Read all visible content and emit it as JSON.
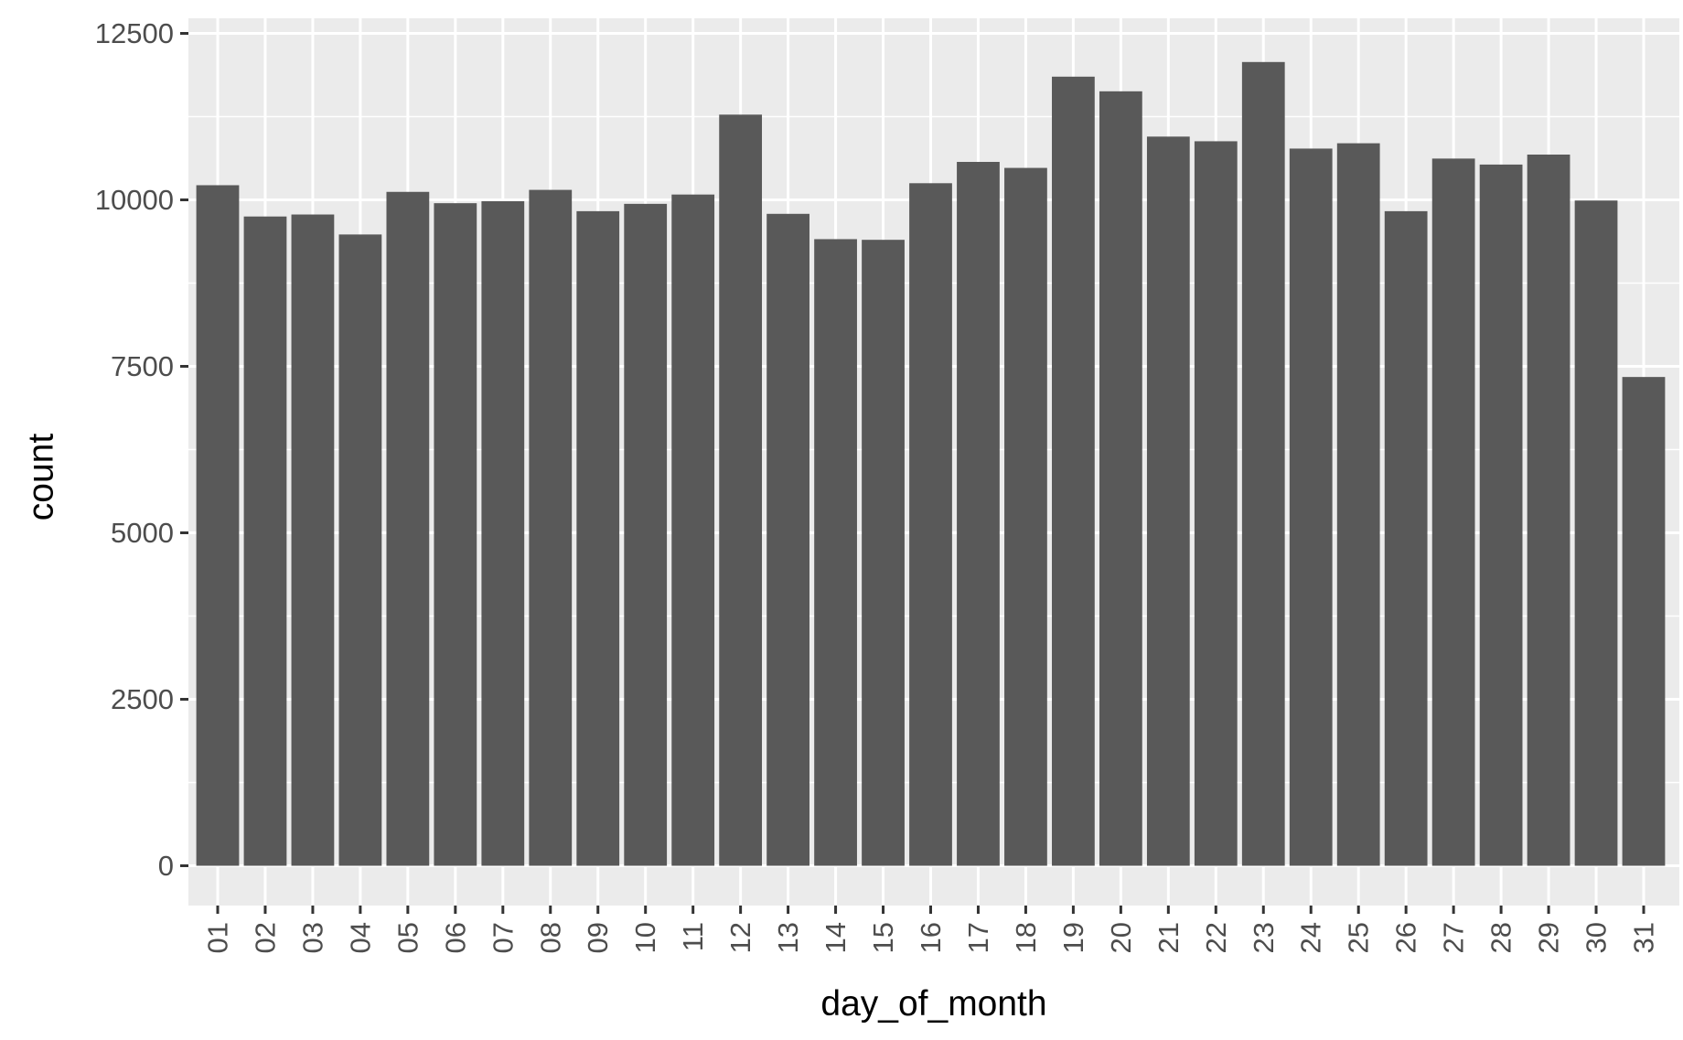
{
  "chart_data": {
    "type": "bar",
    "title": "",
    "xlabel": "day_of_month",
    "ylabel": "count",
    "categories": [
      "01",
      "02",
      "03",
      "04",
      "05",
      "06",
      "07",
      "08",
      "09",
      "10",
      "11",
      "12",
      "13",
      "14",
      "15",
      "16",
      "17",
      "18",
      "19",
      "20",
      "21",
      "22",
      "23",
      "24",
      "25",
      "26",
      "27",
      "28",
      "29",
      "30",
      "31"
    ],
    "values": [
      10220,
      9750,
      9780,
      9480,
      10120,
      9950,
      9980,
      10150,
      9830,
      9940,
      10080,
      11280,
      9790,
      9410,
      9400,
      10250,
      10570,
      10480,
      11850,
      11630,
      10950,
      10880,
      12070,
      10770,
      10850,
      9830,
      10620,
      10530,
      10680,
      9990,
      7340
    ],
    "ylim": [
      0,
      12500
    ],
    "yticks": [
      0,
      2500,
      5000,
      7500,
      10000,
      12500
    ],
    "ytick_labels": [
      "0",
      "2500",
      "5000",
      "7500",
      "10000",
      "12500"
    ],
    "grid": true,
    "legend": "none",
    "colors": {
      "bar": "#595959",
      "panel_background": "#ebebeb",
      "grid": "#ffffff",
      "tick": "#333333"
    }
  }
}
